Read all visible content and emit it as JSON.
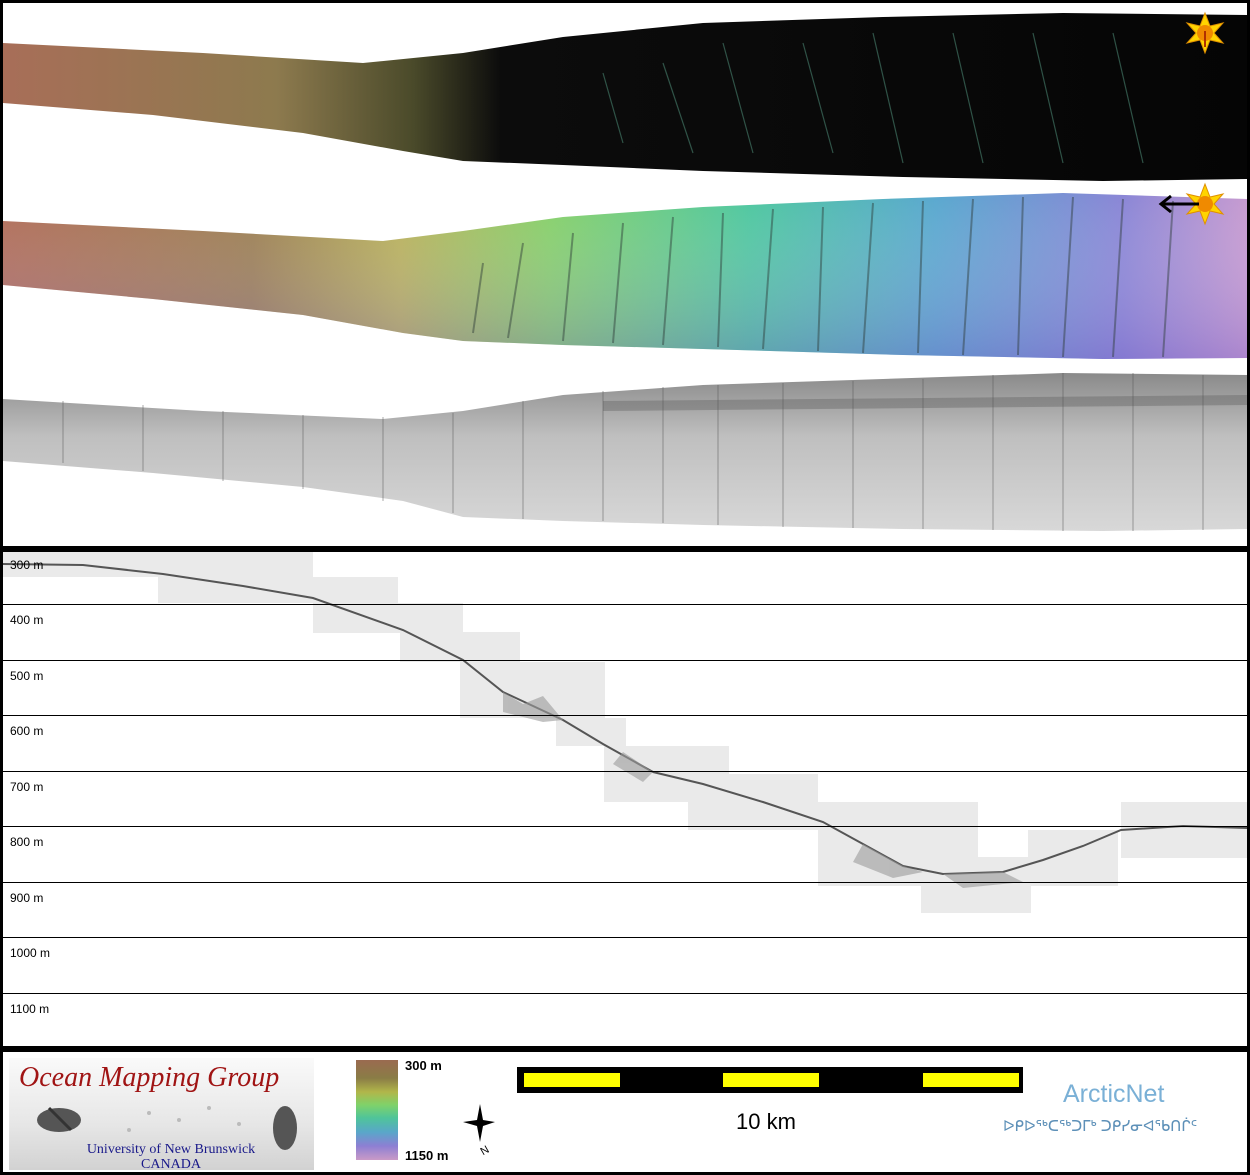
{
  "depth_axis": {
    "labels": [
      "300 m",
      "400 m",
      "500 m",
      "600 m",
      "700 m",
      "800 m",
      "900 m",
      "1000 m",
      "1100 m"
    ]
  },
  "colorbar": {
    "top_label": "300 m",
    "bottom_label": "1150 m"
  },
  "scale": {
    "label": "10 km"
  },
  "logo": {
    "title": "Ocean Mapping Group",
    "subtitle_line1": "University of New Brunswick",
    "subtitle_line2": "CANADA"
  },
  "partner": {
    "name": "ArcticNet",
    "inuktitut": "ᐅᑭᐅᖅᑕᖅᑐᒥᒃ ᑐᑭᓯᓂᐊᖃᑎᒌᑦ"
  },
  "icons": {
    "sun": "sun-icon",
    "arrow": "left-arrow-icon",
    "compass": "north-arrow-icon"
  }
}
